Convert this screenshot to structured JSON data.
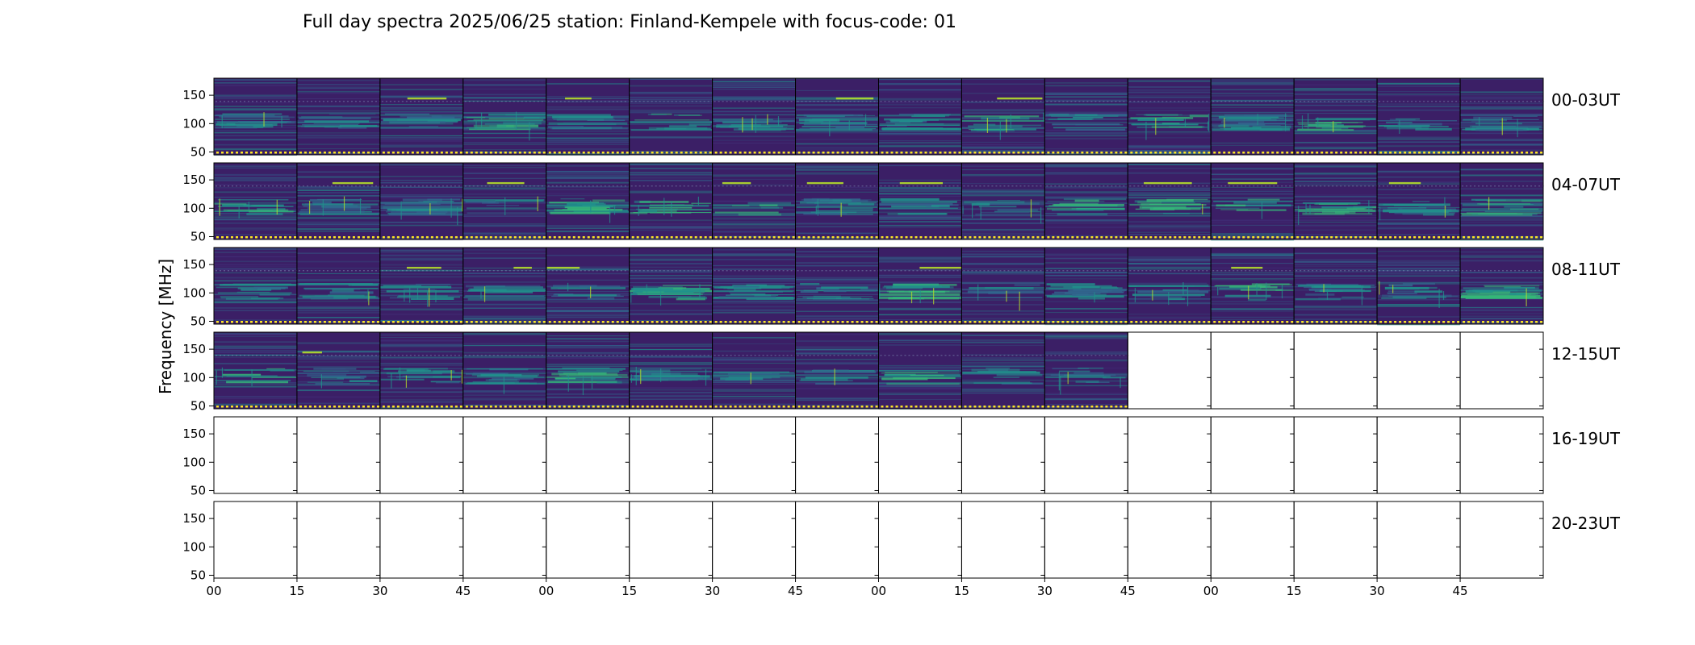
{
  "chart_data": {
    "type": "heatmap",
    "title": "Full day spectra 2025/06/25 station: Finland-Kempele with focus-code: 01",
    "ylabel": "Frequency [MHz]",
    "xlabel": "",
    "y_ticks": [
      50,
      100,
      150
    ],
    "ylim": [
      45,
      180
    ],
    "x_tick_labels": [
      "00",
      "15",
      "30",
      "45",
      "00",
      "15",
      "30",
      "45",
      "00",
      "15",
      "30",
      "45",
      "00",
      "15",
      "30",
      "45"
    ],
    "panels_per_row": 16,
    "minutes_per_panel": 15,
    "colormap": "viridis",
    "rows": [
      {
        "label": "00-03UT",
        "panels_with_data": 16
      },
      {
        "label": "04-07UT",
        "panels_with_data": 16
      },
      {
        "label": "08-11UT",
        "panels_with_data": 16
      },
      {
        "label": "12-15UT",
        "panels_with_data": 11
      },
      {
        "label": "16-19UT",
        "panels_with_data": 0
      },
      {
        "label": "20-23UT",
        "panels_with_data": 0
      }
    ],
    "grid": false,
    "legend": "none"
  },
  "colors": {
    "background_low": "#3b1f66",
    "mid": "#31688e",
    "cyan": "#21918c",
    "green": "#35b779",
    "bright": "#b5de2b",
    "marker": "#fde725",
    "axis": "#000000"
  }
}
